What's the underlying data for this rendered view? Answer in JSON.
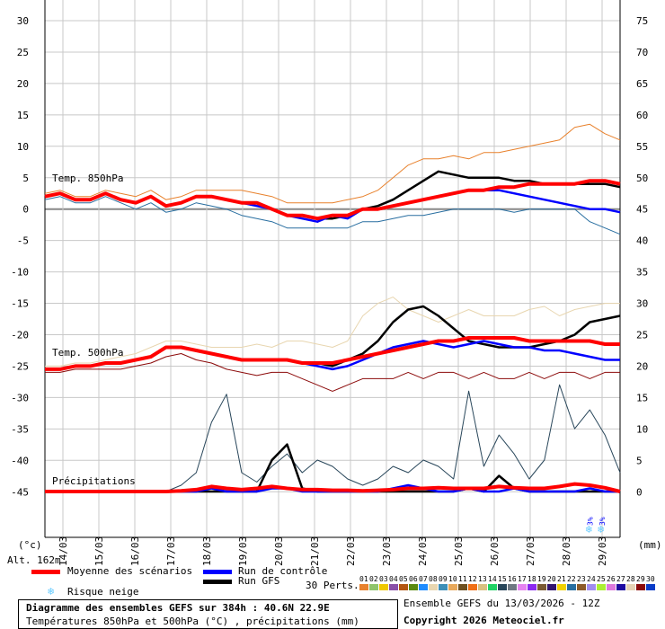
{
  "chart_data": {
    "type": "line",
    "title": "Diagramme des ensembles GEFS sur 384h : 40.6N 22.9E",
    "subtitle": "Températures 850hPa et 500hPa (°C) , précipitations (mm)",
    "run_info": "Ensemble GEFS du 13/03/2026 - 12Z",
    "copyright": "Copyright 2026 Meteociel.fr",
    "altitude": "Alt. 162m",
    "left_axis": {
      "unit": "(°c)",
      "range": [
        -45,
        30
      ],
      "ticks": [
        30,
        25,
        20,
        15,
        10,
        5,
        0,
        -5,
        -10,
        -15,
        -20,
        -25,
        -30,
        -35,
        -40,
        -45
      ]
    },
    "right_axis": {
      "unit": "(mm)",
      "range": [
        0,
        75
      ],
      "ticks": [
        75,
        70,
        65,
        60,
        55,
        50,
        45,
        40,
        35,
        30,
        25,
        20,
        15,
        10,
        5,
        0
      ]
    },
    "x_tick_labels": [
      "14/03",
      "15/03",
      "16/03",
      "17/03",
      "18/03",
      "19/03",
      "20/03",
      "21/03",
      "22/03",
      "23/03",
      "24/03",
      "25/03",
      "26/03",
      "27/03",
      "28/03",
      "29/03"
    ],
    "x_step_hours": 12,
    "x_range_hours": [
      0,
      384
    ],
    "grid": true,
    "panel_labels": {
      "t850": "Temp. 850hPa",
      "t500": "Temp. 500hPa",
      "precip": "Précipitations"
    },
    "legend": {
      "mean": {
        "label": "Moyenne des scénarios",
        "color": "#ff0000"
      },
      "control": {
        "label": "Run de contrôle",
        "color": "#0000ff"
      },
      "gfs": {
        "label": "Run GFS",
        "color": "#000000"
      },
      "snow": {
        "label": "Risque neige",
        "color": "#66ccff"
      },
      "perts_label": "30 Perts.",
      "perts": [
        {
          "n": "01",
          "color": "#e8812c"
        },
        {
          "n": "02",
          "color": "#8fc46a"
        },
        {
          "n": "03",
          "color": "#f0c800"
        },
        {
          "n": "04",
          "color": "#8a4fa8"
        },
        {
          "n": "05",
          "color": "#b3550f"
        },
        {
          "n": "06",
          "color": "#5a8a10"
        },
        {
          "n": "07",
          "color": "#1e8cff"
        },
        {
          "n": "08",
          "color": "#e8d6b0"
        },
        {
          "n": "09",
          "color": "#3d8fb8"
        },
        {
          "n": "10",
          "color": "#e8a85a"
        },
        {
          "n": "11",
          "color": "#6e5020"
        },
        {
          "n": "12",
          "color": "#f06e14"
        },
        {
          "n": "13",
          "color": "#d8c080"
        },
        {
          "n": "14",
          "color": "#1ed264"
        },
        {
          "n": "15",
          "color": "#28465a"
        },
        {
          "n": "16",
          "color": "#6e7882"
        },
        {
          "n": "17",
          "color": "#e682f0"
        },
        {
          "n": "18",
          "color": "#8c28f0"
        },
        {
          "n": "19",
          "color": "#7a5a32"
        },
        {
          "n": "20",
          "color": "#32146e"
        },
        {
          "n": "21",
          "color": "#f0d200"
        },
        {
          "n": "22",
          "color": "#286ea0"
        },
        {
          "n": "23",
          "color": "#8c5a28"
        },
        {
          "n": "24",
          "color": "#a08cf0"
        },
        {
          "n": "25",
          "color": "#aaf032"
        },
        {
          "n": "26",
          "color": "#dc78dc"
        },
        {
          "n": "27",
          "color": "#1e0aa0"
        },
        {
          "n": "28",
          "color": "#e6d2b4"
        },
        {
          "n": "29",
          "color": "#8c0a0a"
        },
        {
          "n": "30",
          "color": "#0a3cc8"
        }
      ]
    },
    "series": [
      {
        "name": "Moyenne des scénarios",
        "variable": "t850",
        "values": [
          2,
          2.5,
          1.5,
          1.5,
          2.5,
          1.5,
          1,
          2,
          0.5,
          1,
          2,
          2,
          1.5,
          1,
          1,
          0,
          -1,
          -1,
          -1.5,
          -1,
          -1,
          0,
          0,
          0.5,
          1,
          1.5,
          2,
          2.5,
          3,
          3,
          3.5,
          3.5,
          4,
          4,
          4,
          4,
          4.5,
          4.5,
          4
        ]
      },
      {
        "name": "Run de contrôle",
        "variable": "t850",
        "values": [
          2,
          2.5,
          1.5,
          1.5,
          2.5,
          1.5,
          1,
          2,
          0.5,
          1,
          2,
          2,
          1.5,
          1,
          0.5,
          0,
          -1,
          -1.5,
          -2,
          -1,
          -1.5,
          0,
          0,
          0.5,
          1,
          1.5,
          2,
          2.5,
          3,
          3,
          3,
          2.5,
          2,
          1.5,
          1,
          0.5,
          0,
          0,
          -0.5
        ]
      },
      {
        "name": "Run GFS",
        "variable": "t850",
        "values": [
          2,
          2.5,
          1.5,
          1.5,
          2.5,
          1.5,
          1,
          2,
          0.5,
          1,
          2,
          2,
          1.5,
          1,
          1,
          0,
          -1,
          -1,
          -1.5,
          -1.5,
          -1,
          0,
          0.5,
          1.5,
          3,
          4.5,
          6,
          5.5,
          5,
          5,
          5,
          4.5,
          4.5,
          4,
          4,
          4,
          4,
          4,
          3.5
        ]
      },
      {
        "name": "Moyenne des scénarios",
        "variable": "t500",
        "values": [
          -25.5,
          -25.5,
          -25,
          -25,
          -24.5,
          -24.5,
          -24,
          -23.5,
          -22,
          -22,
          -22.5,
          -23,
          -23.5,
          -24,
          -24,
          -24,
          -24,
          -24.5,
          -24.5,
          -24.5,
          -24,
          -23.5,
          -23,
          -22.5,
          -22,
          -21.5,
          -21,
          -21,
          -20.5,
          -20.5,
          -20.5,
          -20.5,
          -21,
          -21,
          -21,
          -21,
          -21,
          -21.5,
          -21.5
        ]
      },
      {
        "name": "Run de contrôle",
        "variable": "t500",
        "values": [
          -25.5,
          -25.5,
          -25,
          -25,
          -24.5,
          -24.5,
          -24,
          -23.5,
          -22,
          -22,
          -22.5,
          -23,
          -23.5,
          -24,
          -24,
          -24,
          -24,
          -24.5,
          -25,
          -25.5,
          -25,
          -24,
          -23,
          -22,
          -21.5,
          -21,
          -21.5,
          -22,
          -21.5,
          -21,
          -21.5,
          -22,
          -22,
          -22.5,
          -22.5,
          -23,
          -23.5,
          -24,
          -24
        ]
      },
      {
        "name": "Run GFS",
        "variable": "t500",
        "values": [
          -25.5,
          -25.5,
          -25,
          -25,
          -24.5,
          -24.5,
          -24,
          -23.5,
          -22,
          -22,
          -22.5,
          -23,
          -23.5,
          -24,
          -24,
          -24,
          -24,
          -24.5,
          -24.5,
          -25,
          -24,
          -23,
          -21,
          -18,
          -16,
          -15.5,
          -17,
          -19,
          -21,
          -21.5,
          -22,
          -22,
          -22,
          -21.5,
          -21,
          -20,
          -18,
          -17.5,
          -17
        ]
      },
      {
        "name": "Moyenne des scénarios",
        "variable": "precip",
        "values": [
          0,
          0,
          0,
          0,
          0,
          0,
          0,
          0,
          0,
          0.1,
          0.3,
          0.8,
          0.5,
          0.3,
          0.5,
          0.8,
          0.5,
          0.3,
          0.3,
          0.2,
          0.2,
          0.1,
          0.2,
          0.3,
          0.5,
          0.5,
          0.6,
          0.5,
          0.5,
          0.5,
          0.8,
          0.6,
          0.5,
          0.5,
          0.8,
          1.2,
          1,
          0.6,
          0
        ]
      },
      {
        "name": "Run de contrôle",
        "variable": "precip",
        "values": [
          0,
          0,
          0,
          0,
          0,
          0,
          0,
          0,
          0,
          0,
          0,
          0.5,
          0,
          0,
          0,
          0.5,
          0.5,
          0,
          0,
          0,
          0,
          0,
          0,
          0.5,
          1,
          0.5,
          0,
          0,
          0.5,
          0,
          0,
          0.5,
          0,
          0,
          0,
          0,
          0.5,
          0,
          0
        ]
      },
      {
        "name": "Run GFS",
        "variable": "precip",
        "values": [
          0,
          0,
          0,
          0,
          0,
          0,
          0,
          0,
          0,
          0,
          0,
          0,
          0,
          0,
          0,
          5,
          7.5,
          0.5,
          0,
          0,
          0,
          0,
          0,
          0,
          0,
          0,
          0,
          0,
          0.5,
          0,
          2.5,
          0.5,
          0,
          0,
          0,
          0,
          0,
          0,
          0
        ]
      },
      {
        "name": "Perts max",
        "variable": "t850",
        "values": [
          2.5,
          3,
          2,
          2,
          3,
          2.5,
          2,
          3,
          1.5,
          2,
          3,
          3,
          3,
          3,
          2.5,
          2,
          1,
          1,
          1,
          1,
          1.5,
          2,
          3,
          5,
          7,
          8,
          8,
          8.5,
          8,
          9,
          9,
          9.5,
          10,
          10.5,
          11,
          13,
          13.5,
          12,
          11
        ]
      },
      {
        "name": "Perts min",
        "variable": "t850",
        "values": [
          1.5,
          2,
          1,
          1,
          2,
          1,
          0,
          1,
          -0.5,
          0,
          1,
          0.5,
          0,
          -1,
          -1.5,
          -2,
          -3,
          -3,
          -3,
          -3,
          -3,
          -2,
          -2,
          -1.5,
          -1,
          -1,
          -0.5,
          0,
          0,
          0,
          0,
          -0.5,
          0,
          0,
          0,
          0,
          -2,
          -3,
          -4
        ]
      },
      {
        "name": "Perts max",
        "variable": "t500",
        "values": [
          -25,
          -25,
          -24.5,
          -24.5,
          -24,
          -23.5,
          -23,
          -22,
          -21,
          -21,
          -21.5,
          -22,
          -22,
          -22,
          -21.5,
          -22,
          -21,
          -21,
          -21.5,
          -22,
          -21,
          -17,
          -15,
          -14,
          -16,
          -17,
          -18,
          -17,
          -16,
          -17,
          -17,
          -17,
          -16,
          -15.5,
          -17,
          -16,
          -15.5,
          -15,
          -15
        ]
      },
      {
        "name": "Perts min",
        "variable": "t500",
        "values": [
          -26,
          -26,
          -25.5,
          -25.5,
          -25.5,
          -25.5,
          -25,
          -24.5,
          -23.5,
          -23,
          -24,
          -24.5,
          -25.5,
          -26,
          -26.5,
          -26,
          -26,
          -27,
          -28,
          -29,
          -28,
          -27,
          -27,
          -27,
          -26,
          -27,
          -26,
          -26,
          -27,
          -26,
          -27,
          -27,
          -26,
          -27,
          -26,
          -26,
          -27,
          -26,
          -26
        ]
      },
      {
        "name": "Perts max",
        "variable": "precip",
        "values": [
          0,
          0,
          0,
          0,
          0,
          0,
          0,
          0,
          0,
          1,
          3,
          11,
          15.5,
          3,
          1.5,
          4,
          6,
          3,
          5,
          4,
          2,
          1,
          2,
          4,
          3,
          5,
          4,
          2,
          16,
          4,
          9,
          6,
          2,
          5,
          17,
          10,
          13,
          9,
          3
        ]
      }
    ],
    "snow_risk": [
      {
        "hour": 364,
        "label": "3%"
      },
      {
        "hour": 372,
        "label": "3%"
      }
    ]
  }
}
